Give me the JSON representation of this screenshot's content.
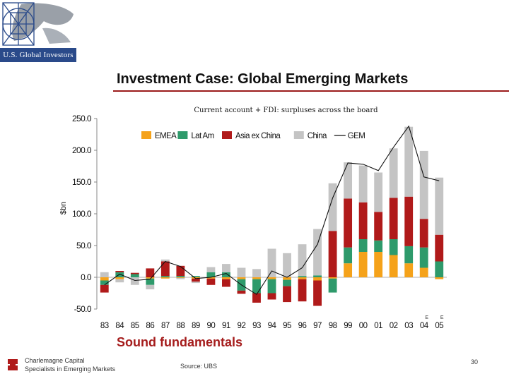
{
  "logo_text": "U.S. Global Investors",
  "slide_title": "Investment Case: Global Emerging Markets",
  "subheading": "Sound fundamentals",
  "footer": {
    "company": "Charlemagne Capital",
    "tagline": "Specialists in Emerging Markets",
    "source": "Source: UBS",
    "page": "30"
  },
  "colors": {
    "EMEA": "#f5a21a",
    "LatAm": "#2e9a6b",
    "Asia ex China": "#b01a1a",
    "China": "#c4c4c4",
    "GEM": "#111111",
    "title_rule": "#9b1b1b",
    "subheading": "#a51c1c"
  },
  "chart_data": {
    "type": "bar",
    "stacked": true,
    "title": "Current account + FDI: surpluses across the board",
    "ylabel": "$bn",
    "xlabel": "",
    "ylim": [
      -50,
      250
    ],
    "yticks": [
      "250.0",
      "200.0",
      "150.0",
      "100.0",
      "50.0",
      "0.0",
      "-50.0"
    ],
    "categories": [
      "83",
      "84",
      "85",
      "86",
      "87",
      "88",
      "89",
      "90",
      "91",
      "92",
      "93",
      "94",
      "95",
      "96",
      "97",
      "98",
      "99",
      "00",
      "01",
      "02",
      "03",
      "04",
      "05"
    ],
    "forecast_marks": [
      "E",
      "E"
    ],
    "legend_position": "top",
    "series": [
      {
        "name": "EMEA",
        "values": [
          -5,
          -3,
          0,
          -2,
          -2,
          -1,
          -2,
          -2,
          -3,
          -3,
          -3,
          -3,
          -4,
          -3,
          -5,
          -2,
          22,
          40,
          40,
          35,
          22,
          15,
          -3
        ]
      },
      {
        "name": "LatAm",
        "values": [
          -7,
          8,
          5,
          -10,
          2,
          2,
          2,
          8,
          8,
          -18,
          -22,
          -22,
          -10,
          2,
          3,
          -22,
          25,
          20,
          18,
          25,
          27,
          32,
          25
        ]
      },
      {
        "name": "Asia ex China",
        "values": [
          -12,
          2,
          2,
          14,
          23,
          16,
          -5,
          -10,
          -12,
          -5,
          -15,
          -10,
          -25,
          -35,
          -40,
          73,
          77,
          58,
          45,
          65,
          78,
          45,
          42
        ]
      },
      {
        "name": "China",
        "values": [
          8,
          -5,
          -12,
          -7,
          3,
          -2,
          -2,
          8,
          13,
          15,
          13,
          45,
          38,
          50,
          73,
          75,
          57,
          58,
          62,
          78,
          110,
          107,
          90
        ]
      },
      {
        "name": "GEM",
        "type": "line",
        "values": [
          -12,
          5,
          -5,
          -3,
          25,
          17,
          -2,
          0,
          6,
          -12,
          -27,
          10,
          0,
          15,
          52,
          125,
          180,
          178,
          168,
          205,
          238,
          158,
          152
        ]
      }
    ]
  }
}
